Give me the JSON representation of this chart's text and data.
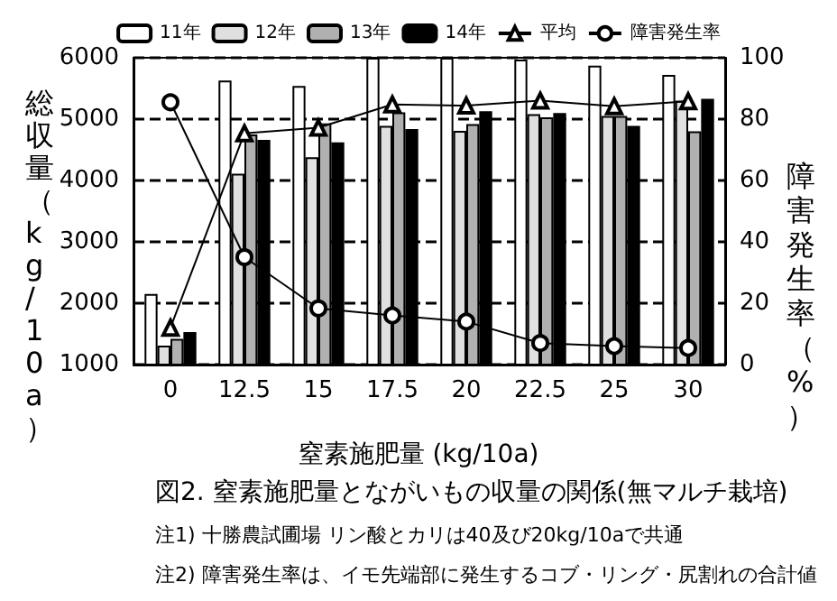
{
  "chart_data": {
    "type": "bar",
    "title": "図2. 窒素施肥量とながいもの収量の関係(無マルチ栽培)",
    "xlabel": "窒素施肥量 (kg/10a)",
    "ylabel": "総収量（kg/10a）",
    "y2label": "障害発生率（%）",
    "annotations": [
      "注1) 十勝農試圃場 リン酸とカリは40及び20kg/10aで共通",
      "注2) 障害発生率は、イモ先端部に発生するコブ・リング・尻割れの合計値"
    ],
    "categories": [
      "0",
      "12.5",
      "15",
      "17.5",
      "20",
      "22.5",
      "25",
      "30"
    ],
    "series": [
      {
        "name": "11年",
        "color": "#ffffff",
        "values": [
          2150,
          5630,
          5540,
          6000,
          6000,
          5970,
          5870,
          5720
        ]
      },
      {
        "name": "12年",
        "color": "#e0e0e0",
        "values": [
          1310,
          4110,
          4380,
          4890,
          4810,
          5080,
          5050,
          5300
        ]
      },
      {
        "name": "13年",
        "color": "#b0b0b0",
        "values": [
          1420,
          4750,
          4930,
          5110,
          4920,
          5030,
          5050,
          4800
        ]
      },
      {
        "name": "14年",
        "color": "#000000",
        "values": [
          1530,
          4660,
          4620,
          4840,
          5130,
          5100,
          4890,
          5330
        ]
      },
      {
        "name": "平均",
        "type": "line",
        "marker": "triangle",
        "color": "#000000",
        "values": [
          1600,
          4770,
          4860,
          5240,
          5220,
          5300,
          5210,
          5290
        ]
      },
      {
        "name": "障害発生率",
        "type": "line",
        "marker": "circle",
        "axis": "y2",
        "color": "#000000",
        "values": [
          85.5,
          35,
          18.3,
          16,
          14,
          7,
          6,
          5.4
        ]
      }
    ],
    "ylim": [
      1000,
      6000
    ],
    "yticks": [
      1000,
      2000,
      3000,
      4000,
      5000,
      6000
    ],
    "y2lim": [
      0,
      100
    ],
    "y2ticks": [
      0,
      20,
      40,
      60,
      80,
      100
    ],
    "grid": "y",
    "legend": "top",
    "line_style": "solid"
  }
}
